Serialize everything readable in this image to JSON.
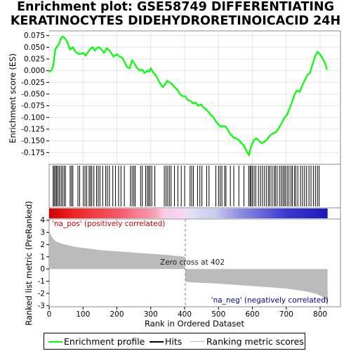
{
  "title": {
    "line1": "Enrichment plot: GSE58749 DIFFERENTIATING",
    "line2": "KERATINOCYTES DIDEHYDRORETINOICACID 24H"
  },
  "colors": {
    "enrichment": "#00ff00",
    "hits": "#000000",
    "metric": "#bbbbbb",
    "pos_label": "#cc0000",
    "neg_label": "#0000aa"
  },
  "legend": {
    "enrichment": "Enrichment profile",
    "hits": "Hits",
    "metric": "Ranking metric scores"
  },
  "annotations": {
    "pos": "'na_pos' (positively correlated)",
    "neg": "'na_neg' (negatively correlated)",
    "zero_cross": "Zero cross at 402"
  },
  "chart_data": [
    {
      "type": "line",
      "name": "enrichment-score",
      "ylabel": "Enrichment score (ES)",
      "xlim": [
        0,
        860
      ],
      "ylim": [
        -0.2,
        0.085
      ],
      "yticks": [
        0.075,
        0.05,
        0.025,
        0.0,
        -0.025,
        -0.05,
        -0.075,
        -0.1,
        -0.125,
        -0.15,
        -0.175
      ],
      "ytick_labels": [
        "0.075",
        "0.050",
        "0.025",
        "0.000",
        "-0.025",
        "-0.050",
        "-0.075",
        "-0.100",
        "-0.125",
        "-0.150",
        "-0.175"
      ],
      "x": [
        0,
        6,
        12,
        18,
        22,
        28,
        35,
        40,
        48,
        55,
        62,
        70,
        78,
        90,
        100,
        108,
        115,
        120,
        128,
        135,
        140,
        148,
        155,
        162,
        170,
        178,
        190,
        200,
        208,
        215,
        222,
        230,
        238,
        245,
        252,
        260,
        268,
        275,
        282,
        290,
        296,
        300,
        308,
        315,
        322,
        330,
        336,
        342,
        348,
        355,
        362,
        370,
        378,
        386,
        395,
        402,
        410,
        418,
        425,
        432,
        440,
        448,
        455,
        462,
        470,
        478,
        485,
        492,
        500,
        508,
        515,
        522,
        530,
        538,
        545,
        552,
        560,
        568,
        575,
        580,
        585,
        590,
        595,
        600,
        605,
        612,
        620,
        628,
        635,
        642,
        650,
        658,
        665,
        672,
        680,
        688,
        695,
        702,
        710,
        718,
        725,
        732,
        740,
        748,
        755,
        762,
        770,
        778,
        785,
        792,
        800,
        808,
        815,
        820
      ],
      "y": [
        -0.003,
        0.0,
        0.01,
        0.045,
        0.05,
        0.055,
        0.07,
        0.073,
        0.068,
        0.058,
        0.045,
        0.05,
        0.04,
        0.035,
        0.038,
        0.032,
        0.04,
        0.045,
        0.05,
        0.043,
        0.048,
        0.05,
        0.045,
        0.038,
        0.048,
        0.043,
        0.03,
        0.035,
        0.03,
        0.028,
        0.02,
        0.008,
        0.005,
        0.022,
        0.015,
        0.005,
        0.0,
        0.002,
        -0.005,
        0.0,
        -0.002,
        0.005,
        -0.005,
        -0.01,
        -0.02,
        -0.03,
        -0.035,
        -0.03,
        -0.022,
        -0.025,
        -0.028,
        -0.035,
        -0.04,
        -0.05,
        -0.055,
        -0.055,
        -0.063,
        -0.065,
        -0.07,
        -0.068,
        -0.075,
        -0.072,
        -0.078,
        -0.082,
        -0.088,
        -0.095,
        -0.1,
        -0.108,
        -0.115,
        -0.12,
        -0.118,
        -0.12,
        -0.13,
        -0.138,
        -0.143,
        -0.145,
        -0.148,
        -0.155,
        -0.16,
        -0.168,
        -0.175,
        -0.18,
        -0.165,
        -0.155,
        -0.148,
        -0.145,
        -0.15,
        -0.155,
        -0.152,
        -0.148,
        -0.14,
        -0.135,
        -0.133,
        -0.13,
        -0.12,
        -0.11,
        -0.1,
        -0.095,
        -0.08,
        -0.065,
        -0.05,
        -0.042,
        -0.045,
        -0.03,
        -0.02,
        -0.01,
        -0.005,
        0.015,
        0.03,
        0.04,
        0.035,
        0.025,
        0.015,
        0.002
      ]
    },
    {
      "type": "scatter",
      "name": "hits",
      "positions": [
        12,
        15,
        19,
        22,
        26,
        30,
        35,
        39,
        44,
        48,
        62,
        66,
        70,
        85,
        90,
        101,
        106,
        111,
        118,
        122,
        126,
        132,
        140,
        145,
        150,
        158,
        167,
        172,
        178,
        188,
        196,
        205,
        212,
        222,
        240,
        245,
        250,
        254,
        270,
        275,
        285,
        290,
        294,
        298,
        303,
        312,
        340,
        345,
        350,
        355,
        360,
        370,
        380,
        390,
        400,
        416,
        421,
        426,
        438,
        445,
        451,
        465,
        472,
        492,
        500,
        505,
        510,
        518,
        522,
        535,
        545,
        560,
        575,
        589,
        593,
        596,
        600,
        605,
        610,
        618,
        624,
        630,
        636,
        642,
        648,
        652,
        658,
        664,
        668,
        673,
        680,
        685,
        690,
        694,
        698,
        703,
        708,
        714,
        718,
        724,
        728,
        734,
        742,
        748,
        754,
        760,
        767,
        773,
        780,
        786,
        792,
        797
      ]
    },
    {
      "type": "area",
      "name": "ranking-metric",
      "ylabel": "Ranked list metric (PreRanked)",
      "xlabel": "Rank in Ordered Dataset",
      "xlim": [
        0,
        860
      ],
      "ylim": [
        -3.1,
        4.1
      ],
      "yticks": [
        4,
        3,
        2,
        1,
        0,
        -1,
        -2,
        -3
      ],
      "xticks": [
        0,
        100,
        200,
        300,
        400,
        500,
        600,
        700,
        800
      ],
      "zero_cross": 402,
      "n": 822,
      "x": [
        0,
        5,
        10,
        20,
        40,
        80,
        150,
        250,
        350,
        401,
        402,
        420,
        500,
        600,
        700,
        760,
        790,
        805,
        815,
        822
      ],
      "y": [
        3.0,
        2.8,
        2.55,
        2.25,
        2.05,
        1.8,
        1.55,
        1.35,
        1.15,
        1.0,
        -1.05,
        -1.1,
        -1.2,
        -1.4,
        -1.6,
        -1.85,
        -2.05,
        -2.25,
        -2.5,
        -3.0
      ]
    }
  ]
}
